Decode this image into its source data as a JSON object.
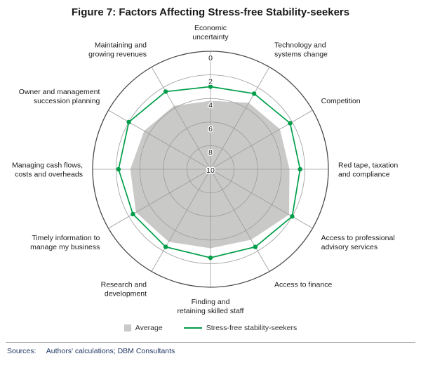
{
  "title": "Figure 7: Factors Affecting Stress-free Stability-seekers",
  "legend": {
    "average": "Average",
    "series": "Stress-free stability-seekers"
  },
  "sources": {
    "label": "Sources:",
    "text": "Authors' calculations; DBM Consultants"
  },
  "colors": {
    "series_green": "#009e49",
    "average_gray": "#c9c9c7",
    "grid_gray": "#9b9b9b",
    "outer_ring": "#4a4a4a"
  },
  "chart_data": {
    "type": "radar",
    "title": "Figure 7: Factors Affecting Stress-free Stability-seekers",
    "radial_axis": {
      "min": 0,
      "max": 10,
      "ticks": [
        0,
        2,
        4,
        6,
        8,
        10
      ],
      "direction": "reversed: 0 at outer edge, 10 at centre"
    },
    "categories": [
      "Economic\nuncertainty",
      "Technology and\nsystems change",
      "Competition",
      "Red tape, taxation\nand compliance",
      "Access to professional\nadvisory services",
      "Access to finance",
      "Finding and\nretaining skilled staff",
      "Research and\ndevelopment",
      "Timely information to\nmanage my business",
      "Managing cash flows,\ncosts and overheads",
      "Owner and management\nsuccession planning",
      "Maintaining and\ngrowing revenues"
    ],
    "series": [
      {
        "name": "Average",
        "type": "filled-area",
        "color": "#c9c9c7",
        "values": [
          4.2,
          3.5,
          3.2,
          3.3,
          2.3,
          3.1,
          3.3,
          2.9,
          2.7,
          3.2,
          3.5,
          3.8
        ]
      },
      {
        "name": "Stress-free stability-seekers",
        "type": "line-markers",
        "color": "#009e49",
        "values": [
          3.0,
          2.6,
          2.2,
          2.4,
          2.0,
          2.4,
          2.5,
          2.4,
          2.4,
          2.2,
          2.0,
          2.4
        ]
      }
    ],
    "legend_position": "bottom",
    "grid": true
  }
}
